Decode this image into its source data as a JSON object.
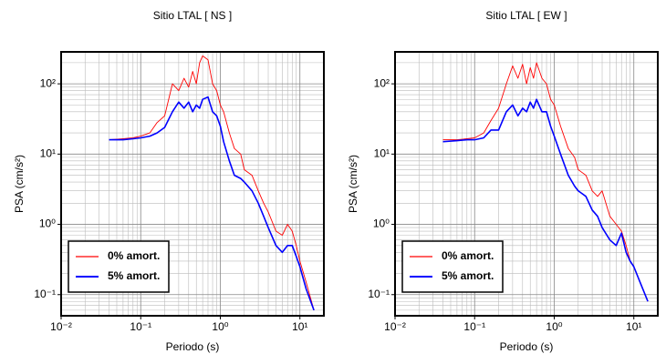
{
  "chart_data": [
    {
      "type": "line",
      "title": "Sitio LTAL [ NS ]",
      "x_label": "Periodo (s)",
      "y_label": "PSA (cm/s²)",
      "log_x": true,
      "log_y": true,
      "grid": true,
      "legend": "lower left",
      "xlim": [
        0.01,
        20
      ],
      "ylim": [
        0.05,
        285
      ],
      "xticks": [
        {
          "value": 0.01,
          "label": "10⁻²"
        },
        {
          "value": 0.1,
          "label": "10⁻¹"
        },
        {
          "value": 1,
          "label": "10⁰"
        },
        {
          "value": 10,
          "label": "10¹"
        }
      ],
      "yticks": [
        {
          "value": 0.1,
          "label": "10⁻¹"
        },
        {
          "value": 1,
          "label": "10⁰"
        },
        {
          "value": 10,
          "label": "10¹"
        },
        {
          "value": 100,
          "label": "10²"
        }
      ],
      "x": [
        0.04,
        0.06,
        0.08,
        0.1,
        0.13,
        0.16,
        0.2,
        0.25,
        0.3,
        0.35,
        0.4,
        0.45,
        0.5,
        0.55,
        0.6,
        0.7,
        0.8,
        0.9,
        1.0,
        1.1,
        1.3,
        1.5,
        1.8,
        2,
        2.5,
        3,
        3.5,
        4,
        5,
        6,
        7,
        8,
        9,
        10,
        12,
        15
      ],
      "series": [
        {
          "name": "0% amort.",
          "color": "#ff0000",
          "values": [
            16,
            16.5,
            17,
            18,
            20,
            28,
            35,
            100,
            80,
            120,
            90,
            150,
            100,
            200,
            250,
            220,
            100,
            80,
            50,
            40,
            20,
            12,
            10,
            6,
            5,
            3,
            2,
            1.5,
            0.8,
            0.7,
            1.0,
            0.8,
            0.5,
            0.3,
            0.15,
            0.06
          ]
        },
        {
          "name": "5% amort.",
          "color": "#0000ff",
          "values": [
            16,
            16,
            16.5,
            17,
            18,
            20,
            24,
            40,
            55,
            45,
            55,
            40,
            50,
            45,
            60,
            65,
            40,
            35,
            25,
            15,
            8,
            5,
            4.5,
            4,
            3,
            2,
            1.3,
            0.9,
            0.5,
            0.4,
            0.5,
            0.5,
            0.35,
            0.25,
            0.12,
            0.06
          ]
        }
      ]
    },
    {
      "type": "line",
      "title": "Sitio LTAL [ EW ]",
      "x_label": "Periodo (s)",
      "y_label": "PSA (cm/s²)",
      "log_x": true,
      "log_y": true,
      "grid": true,
      "legend": "lower left",
      "xlim": [
        0.01,
        20
      ],
      "ylim": [
        0.05,
        285
      ],
      "xticks": [
        {
          "value": 0.01,
          "label": "10⁻²"
        },
        {
          "value": 0.1,
          "label": "10⁻¹"
        },
        {
          "value": 1,
          "label": "10⁰"
        },
        {
          "value": 10,
          "label": "10¹"
        }
      ],
      "yticks": [
        {
          "value": 0.1,
          "label": "10⁻¹"
        },
        {
          "value": 1,
          "label": "10⁰"
        },
        {
          "value": 10,
          "label": "10¹"
        },
        {
          "value": 100,
          "label": "10²"
        }
      ],
      "x": [
        0.04,
        0.06,
        0.08,
        0.1,
        0.13,
        0.16,
        0.2,
        0.25,
        0.3,
        0.35,
        0.4,
        0.45,
        0.5,
        0.55,
        0.6,
        0.7,
        0.8,
        0.9,
        1.0,
        1.2,
        1.5,
        1.8,
        2,
        2.5,
        3,
        3.5,
        4,
        5,
        6,
        7,
        8,
        9,
        10,
        12,
        15
      ],
      "series": [
        {
          "name": "0% amort.",
          "color": "#ff0000",
          "values": [
            16,
            16,
            16.5,
            17,
            20,
            30,
            45,
            100,
            180,
            120,
            190,
            100,
            170,
            120,
            200,
            120,
            100,
            60,
            50,
            25,
            12,
            9,
            6,
            5,
            3,
            2.5,
            3,
            1.3,
            1,
            0.8,
            0.5,
            0.3,
            0.25,
            0.15,
            0.08
          ]
        },
        {
          "name": "5% amort.",
          "color": "#0000ff",
          "values": [
            15,
            15.5,
            16,
            16,
            17,
            22,
            22,
            40,
            50,
            35,
            45,
            40,
            55,
            45,
            60,
            40,
            40,
            25,
            18,
            10,
            5,
            3.5,
            3,
            2.5,
            1.6,
            1.3,
            0.9,
            0.6,
            0.5,
            0.75,
            0.4,
            0.3,
            0.25,
            0.15,
            0.08
          ]
        }
      ]
    }
  ]
}
